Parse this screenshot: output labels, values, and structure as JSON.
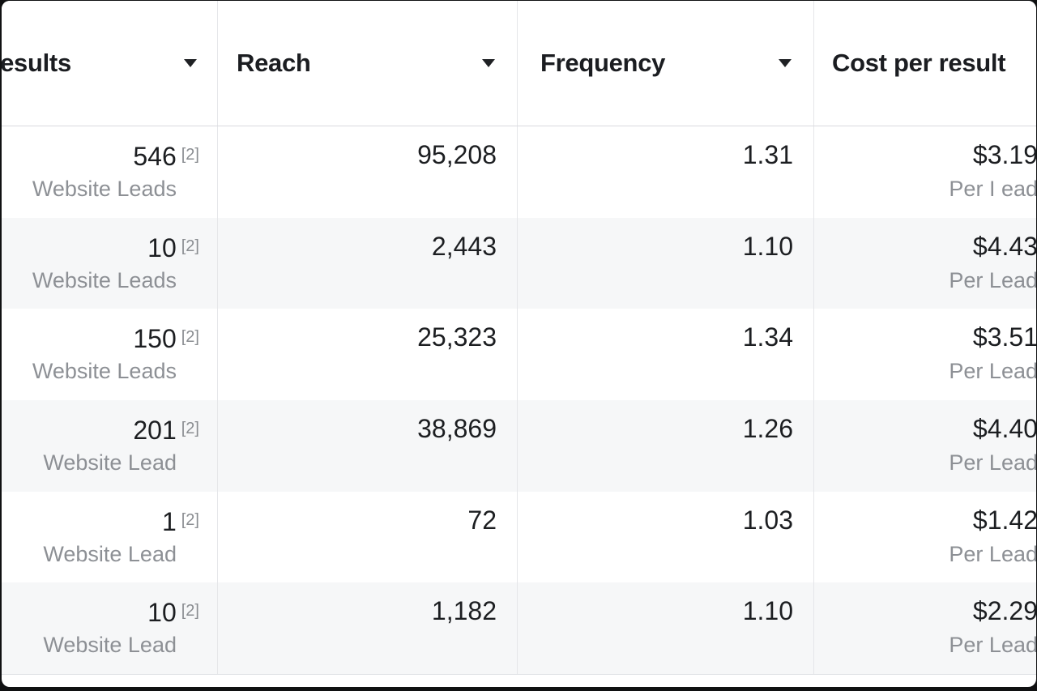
{
  "table": {
    "columns": [
      {
        "label": "Results"
      },
      {
        "label": "Reach"
      },
      {
        "label": "Frequency"
      },
      {
        "label": "Cost per result"
      }
    ],
    "rows": [
      {
        "result_value": "546",
        "result_sup": "[2]",
        "result_label": "Website Leads",
        "reach": "95,208",
        "frequency": "1.31",
        "cost": "$3.19",
        "cost_label": "Per I ead"
      },
      {
        "result_value": "10",
        "result_sup": "[2]",
        "result_label": "Website Leads",
        "reach": "2,443",
        "frequency": "1.10",
        "cost": "$4.43",
        "cost_label": "Per Lead"
      },
      {
        "result_value": "150",
        "result_sup": "[2]",
        "result_label": "Website Leads",
        "reach": "25,323",
        "frequency": "1.34",
        "cost": "$3.51",
        "cost_label": "Per Lead"
      },
      {
        "result_value": "201",
        "result_sup": "[2]",
        "result_label": "Website Lead",
        "reach": "38,869",
        "frequency": "1.26",
        "cost": "$4.40",
        "cost_label": "Per Lead"
      },
      {
        "result_value": "1",
        "result_sup": "[2]",
        "result_label": "Website Lead",
        "reach": "72",
        "frequency": "1.03",
        "cost": "$1.42",
        "cost_label": "Per Lead"
      },
      {
        "result_value": "10",
        "result_sup": "[2]",
        "result_label": "Website Lead",
        "reach": "1,182",
        "frequency": "1.10",
        "cost": "$2.29",
        "cost_label": "Per Lead"
      }
    ]
  },
  "colors": {
    "value_text": "#1c1e21",
    "header_text": "#1b1d21",
    "sub_label_text": "#8d9095",
    "superscript_text": "#8a8d91",
    "row_stripe": "#f6f7f8",
    "column_divider": "#e5e6e9",
    "header_border": "#d8dadf",
    "frame": "#101112"
  }
}
